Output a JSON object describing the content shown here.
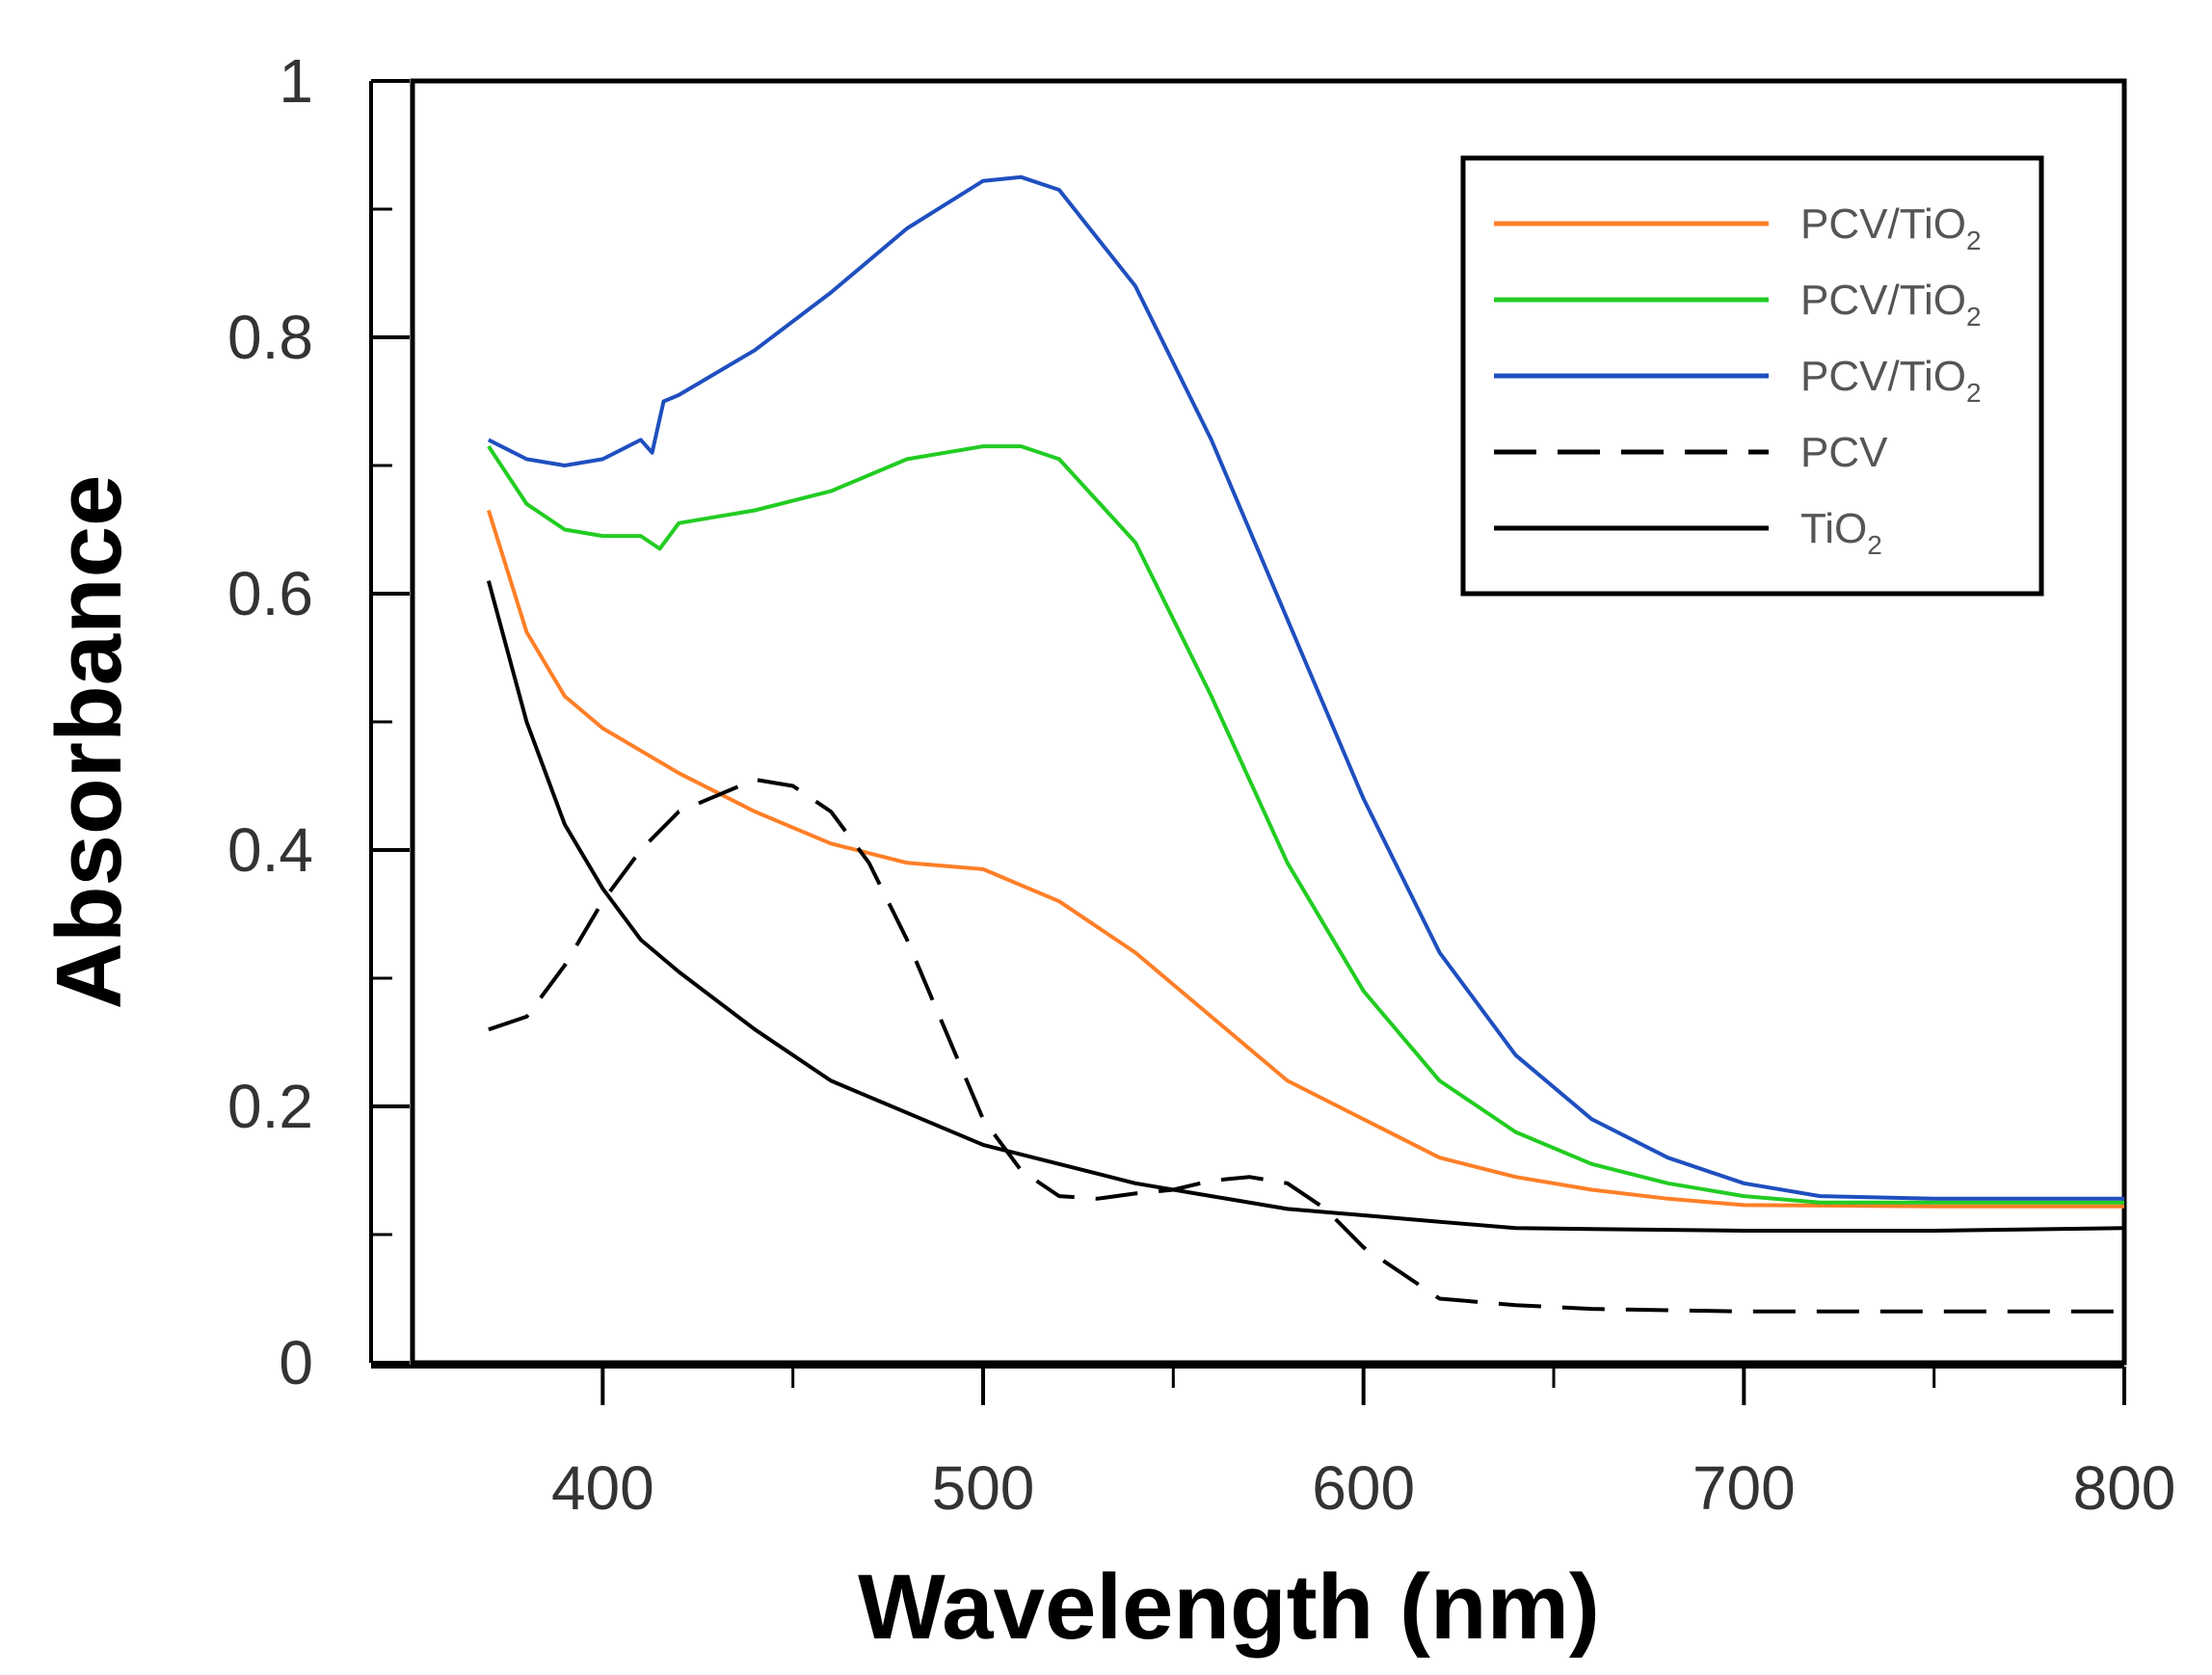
{
  "chart_data": {
    "type": "line",
    "title": "",
    "xlabel": "Wavelength (nm)",
    "ylabel": "Absorbance",
    "xlim": [
      350,
      800
    ],
    "ylim": [
      0,
      1
    ],
    "xticks": [
      400,
      500,
      600,
      700,
      800
    ],
    "yticks": [
      0,
      0.2,
      0.4,
      0.6,
      0.8,
      1
    ],
    "ytick_labels": [
      "0",
      "0.2",
      "0.4",
      "0.6",
      "0.8",
      "1"
    ],
    "grid": false,
    "legend_position": "top-right",
    "series": [
      {
        "name": "PCV/TiO",
        "sub": "2",
        "color": "#ff7f27",
        "dash": "solid",
        "x": [
          370,
          380,
          390,
          400,
          420,
          440,
          460,
          480,
          500,
          520,
          540,
          560,
          580,
          600,
          620,
          640,
          660,
          680,
          700,
          750,
          800
        ],
        "y": [
          0.665,
          0.57,
          0.52,
          0.495,
          0.46,
          0.43,
          0.405,
          0.39,
          0.385,
          0.36,
          0.32,
          0.27,
          0.22,
          0.19,
          0.16,
          0.145,
          0.135,
          0.128,
          0.123,
          0.122,
          0.122
        ]
      },
      {
        "name": "PCV/TiO",
        "sub": "2",
        "color": "#22cc22",
        "dash": "solid",
        "x": [
          370,
          380,
          390,
          400,
          410,
          415,
          420,
          440,
          460,
          480,
          500,
          510,
          520,
          540,
          560,
          580,
          600,
          620,
          640,
          660,
          680,
          700,
          720,
          750,
          800
        ],
        "y": [
          0.715,
          0.67,
          0.65,
          0.645,
          0.645,
          0.635,
          0.655,
          0.665,
          0.68,
          0.705,
          0.715,
          0.715,
          0.705,
          0.64,
          0.52,
          0.39,
          0.29,
          0.22,
          0.18,
          0.155,
          0.14,
          0.13,
          0.125,
          0.125,
          0.125
        ]
      },
      {
        "name": "PCV/TiO",
        "sub": "2",
        "color": "#1f4fbf",
        "dash": "solid",
        "x": [
          370,
          380,
          390,
          400,
          410,
          413,
          416,
          420,
          440,
          460,
          480,
          500,
          510,
          520,
          540,
          560,
          580,
          600,
          620,
          640,
          660,
          680,
          700,
          720,
          750,
          800
        ],
        "y": [
          0.72,
          0.705,
          0.7,
          0.705,
          0.72,
          0.71,
          0.75,
          0.755,
          0.79,
          0.835,
          0.885,
          0.922,
          0.925,
          0.915,
          0.84,
          0.72,
          0.58,
          0.44,
          0.32,
          0.24,
          0.19,
          0.16,
          0.14,
          0.13,
          0.128,
          0.128
        ]
      },
      {
        "name": "PCV",
        "sub": "",
        "color": "#000000",
        "dash": "dashed",
        "x": [
          370,
          380,
          390,
          400,
          410,
          420,
          440,
          450,
          460,
          470,
          480,
          490,
          500,
          510,
          520,
          530,
          540,
          550,
          560,
          570,
          580,
          590,
          600,
          620,
          640,
          660,
          700,
          750,
          800
        ],
        "y": [
          0.26,
          0.27,
          0.31,
          0.36,
          0.4,
          0.43,
          0.455,
          0.45,
          0.43,
          0.39,
          0.33,
          0.26,
          0.19,
          0.15,
          0.13,
          0.128,
          0.132,
          0.135,
          0.142,
          0.145,
          0.14,
          0.12,
          0.09,
          0.05,
          0.045,
          0.042,
          0.04,
          0.04,
          0.04
        ]
      },
      {
        "name": "TiO",
        "sub": "2",
        "color": "#000000",
        "dash": "solid",
        "x": [
          370,
          380,
          390,
          400,
          410,
          420,
          440,
          460,
          480,
          500,
          520,
          540,
          560,
          580,
          600,
          620,
          640,
          700,
          750,
          800
        ],
        "y": [
          0.61,
          0.5,
          0.42,
          0.37,
          0.33,
          0.305,
          0.26,
          0.22,
          0.195,
          0.17,
          0.155,
          0.14,
          0.13,
          0.12,
          0.115,
          0.11,
          0.105,
          0.103,
          0.103,
          0.105
        ]
      }
    ]
  }
}
